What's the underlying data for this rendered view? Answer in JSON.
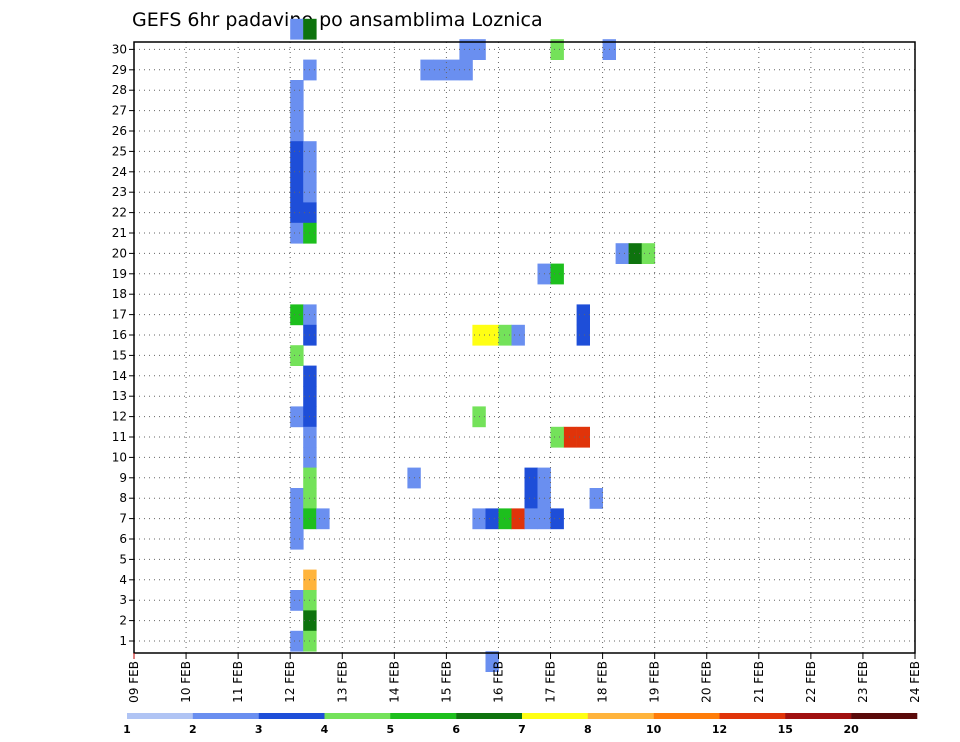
{
  "chart_data": {
    "type": "heatmap",
    "title": "GEFS 6hr padavine po ansamblima Loznica",
    "xlabel": "",
    "ylabel": "",
    "x_ticks": [
      "09 FEB",
      "10 FEB",
      "11 FEB",
      "12 FEB",
      "13 FEB",
      "14 FEB",
      "15 FEB",
      "16 FEB",
      "17 FEB",
      "18 FEB",
      "19 FEB",
      "20 FEB",
      "21 FEB",
      "22 FEB",
      "23 FEB",
      "24 FEB"
    ],
    "x_range_days": [
      0,
      15
    ],
    "y_ticks": [
      "1",
      "2",
      "3",
      "4",
      "5",
      "6",
      "7",
      "8",
      "9",
      "10",
      "11",
      "12",
      "13",
      "14",
      "15",
      "16",
      "17",
      "18",
      "19",
      "20",
      "21",
      "22",
      "23",
      "24",
      "25",
      "26",
      "27",
      "28",
      "29",
      "30"
    ],
    "y_range": [
      0,
      30
    ],
    "grid": true,
    "colorbar": {
      "labels": [
        "1",
        "2",
        "3",
        "4",
        "5",
        "6",
        "7",
        "8",
        "10",
        "12",
        "15",
        "20"
      ],
      "colors": [
        "#b0c4f4",
        "#6a8ff0",
        "#1e4ed8",
        "#74e25a",
        "#1dbf1d",
        "#0e730e",
        "#ffff14",
        "#ffb43c",
        "#ff7d0a",
        "#e0340a",
        "#a01010",
        "#5a0a0a"
      ]
    },
    "units_note": "cells: member (y), 6-hourly step from 09 FEB 00 UTC (x), colour class index",
    "cells": [
      [
        12,
        30,
        1
      ],
      [
        13,
        30,
        5
      ],
      [
        13,
        28,
        1
      ],
      [
        22,
        28,
        1
      ],
      [
        23,
        28,
        1
      ],
      [
        24,
        28,
        1
      ],
      [
        25,
        28,
        1
      ],
      [
        25,
        29,
        1
      ],
      [
        26,
        29,
        1
      ],
      [
        32,
        29,
        3
      ],
      [
        36,
        29,
        1
      ],
      [
        12,
        27,
        1
      ],
      [
        12,
        26,
        1
      ],
      [
        12,
        25,
        1
      ],
      [
        12,
        24,
        2
      ],
      [
        13,
        24,
        1
      ],
      [
        12,
        23,
        2
      ],
      [
        13,
        23,
        1
      ],
      [
        12,
        22,
        2
      ],
      [
        13,
        22,
        1
      ],
      [
        12,
        21,
        2
      ],
      [
        13,
        21,
        2
      ],
      [
        12,
        20,
        1
      ],
      [
        13,
        20,
        4
      ],
      [
        37,
        19,
        1
      ],
      [
        38,
        19,
        5
      ],
      [
        39,
        19,
        3
      ],
      [
        31,
        18,
        1
      ],
      [
        32,
        18,
        4
      ],
      [
        12,
        16,
        4
      ],
      [
        13,
        16,
        1
      ],
      [
        34,
        16,
        2
      ],
      [
        13,
        15,
        2
      ],
      [
        26,
        15,
        6
      ],
      [
        27,
        15,
        6
      ],
      [
        28,
        15,
        3
      ],
      [
        29,
        15,
        1
      ],
      [
        34,
        15,
        2
      ],
      [
        12,
        14,
        3
      ],
      [
        13,
        13,
        2
      ],
      [
        13,
        12,
        2
      ],
      [
        12,
        11,
        1
      ],
      [
        26,
        11,
        3
      ],
      [
        13,
        11,
        2
      ],
      [
        13,
        10,
        1
      ],
      [
        33,
        10,
        9
      ],
      [
        32,
        10,
        3
      ],
      [
        34,
        10,
        9
      ],
      [
        13,
        9,
        1
      ],
      [
        13,
        8,
        3
      ],
      [
        21,
        8,
        1
      ],
      [
        30,
        8,
        2
      ],
      [
        31,
        8,
        1
      ],
      [
        12,
        7,
        1
      ],
      [
        13,
        7,
        3
      ],
      [
        30,
        7,
        2
      ],
      [
        31,
        7,
        1
      ],
      [
        35,
        7,
        1
      ],
      [
        12,
        6,
        1
      ],
      [
        13,
        6,
        4
      ],
      [
        14,
        6,
        1
      ],
      [
        26,
        6,
        1
      ],
      [
        27,
        6,
        2
      ],
      [
        28,
        6,
        4
      ],
      [
        29,
        6,
        9
      ],
      [
        30,
        6,
        1
      ],
      [
        31,
        6,
        1
      ],
      [
        32,
        6,
        2
      ],
      [
        12,
        5,
        1
      ],
      [
        13,
        3,
        7
      ],
      [
        12,
        2,
        1
      ],
      [
        13,
        2,
        3
      ],
      [
        13,
        1,
        5
      ],
      [
        12,
        0,
        1
      ],
      [
        13,
        0,
        3
      ],
      [
        27,
        -1,
        1
      ]
    ]
  }
}
